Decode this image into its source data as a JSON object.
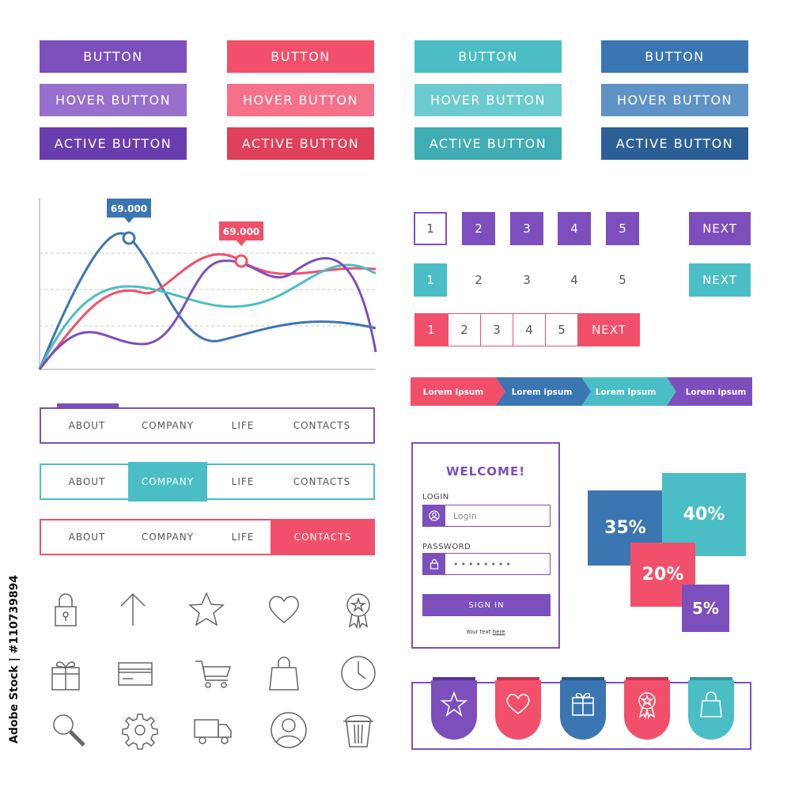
{
  "colors": {
    "purple": "#7c4fbd",
    "purple_hover": "#9670cc",
    "purple_active": "#6a3daf",
    "red": "#f2506a",
    "red_hover": "#f5718a",
    "red_active": "#e0405a",
    "teal": "#4bbec5",
    "teal_hover": "#6ccbd1",
    "teal_active": "#3fadb3",
    "blue": "#3b76b3",
    "blue_hover": "#5f93c6",
    "blue_active": "#2d5f97"
  },
  "buttons": {
    "purple": [
      "BUTTON",
      "HOVER BUTTON",
      "ACTIVE BUTTON"
    ],
    "red": [
      "BUTTON",
      "HOVER BUTTON",
      "ACTIVE BUTTON"
    ],
    "teal": [
      "BUTTON",
      "HOVER BUTTON",
      "ACTIVE BUTTON"
    ],
    "blue": [
      "BUTTON",
      "HOVER BUTTON",
      "ACTIVE BUTTON"
    ]
  },
  "chart": {
    "tooltip_blue": "69.000",
    "tooltip_red": "69.000"
  },
  "pagination": {
    "pages": [
      "1",
      "2",
      "3",
      "4",
      "5"
    ],
    "next": "NEXT"
  },
  "steps": [
    "Lorem ipsum",
    "Lorem ipsum",
    "Lorem ipsum",
    "Lorem ipsum"
  ],
  "nav": {
    "items": [
      "ABOUT",
      "COMPANY",
      "LIFE",
      "CONTACTS"
    ]
  },
  "login": {
    "title": "WELCOME!",
    "login_label": "LOGIN",
    "login_placeholder": "Login",
    "password_label": "PASSWORD",
    "password_value": "••••••••",
    "sign_in": "SIGN IN",
    "footer_text": "Your text",
    "footer_link": "here"
  },
  "percents": [
    "35%",
    "40%",
    "20%",
    "5%"
  ],
  "icons": [
    "padlock-icon",
    "arrow-up-icon",
    "star-icon",
    "heart-icon",
    "award-badge-icon",
    "gift-icon",
    "credit-card-icon",
    "shopping-cart-icon",
    "shopping-bag-icon",
    "clock-icon",
    "magnifier-icon",
    "gear-icon",
    "truck-icon",
    "user-icon",
    "trash-icon"
  ],
  "bookmarks": [
    "star-icon",
    "heart-icon",
    "gift-icon",
    "award-badge-icon",
    "shopping-bag-icon"
  ],
  "watermark": "Adobe Stock | #110739894"
}
